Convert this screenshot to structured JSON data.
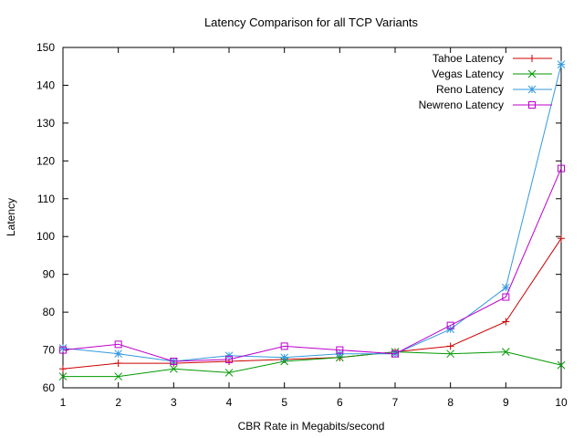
{
  "chart_data": {
    "type": "line",
    "title": "Latency Comparison for all TCP Variants",
    "xlabel": "CBR Rate in Megabits/second",
    "ylabel": "Latency",
    "xlim": [
      1,
      10
    ],
    "ylim": [
      60,
      150
    ],
    "x": [
      1,
      2,
      3,
      4,
      5,
      6,
      7,
      8,
      9,
      10
    ],
    "xticks": [
      "1",
      "2",
      "3",
      "4",
      "5",
      "6",
      "7",
      "8",
      "9",
      "10"
    ],
    "yticks": [
      "60",
      "70",
      "80",
      "90",
      "100",
      "110",
      "120",
      "130",
      "140",
      "150"
    ],
    "grid": false,
    "legend_position": "top-right",
    "series": [
      {
        "name": "Tahoe Latency",
        "color": "#cc0000",
        "marker": "plus",
        "values": [
          65.0,
          66.5,
          66.5,
          67.0,
          67.5,
          68.0,
          69.5,
          71.0,
          77.5,
          99.5
        ]
      },
      {
        "name": "Vegas Latency",
        "color": "#009900",
        "marker": "cross",
        "values": [
          63.0,
          63.0,
          65.0,
          64.0,
          67.0,
          68.0,
          69.5,
          69.0,
          69.5,
          66.0
        ]
      },
      {
        "name": "Reno Latency",
        "color": "#3399dd",
        "marker": "star",
        "values": [
          70.5,
          69.0,
          67.0,
          68.5,
          68.0,
          69.0,
          69.0,
          75.5,
          86.5,
          145.5
        ]
      },
      {
        "name": "Newreno Latency",
        "color": "#bb00cc",
        "marker": "square",
        "values": [
          70.0,
          71.5,
          67.0,
          67.5,
          71.0,
          70.0,
          69.0,
          76.5,
          84.0,
          118.0
        ]
      }
    ]
  }
}
